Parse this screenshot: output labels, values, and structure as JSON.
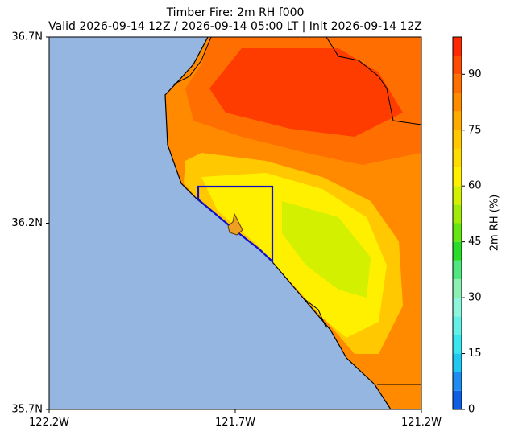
{
  "title": "Timber Fire: 2m RH f000",
  "subtitle": "Valid 2026-09-14 12Z / 2026-09-14 05:00 LT | Init 2026-09-14 12Z",
  "map": {
    "latlim": [
      35.7,
      36.7
    ],
    "lonlim": [
      -122.2,
      -121.2
    ],
    "lat_ticks": [
      {
        "value": 35.7,
        "label": "35.7N"
      },
      {
        "value": 36.2,
        "label": "36.2N"
      },
      {
        "value": 36.7,
        "label": "36.7N"
      }
    ],
    "lon_ticks": [
      {
        "value": -122.2,
        "label": "122.2W"
      },
      {
        "value": -121.7,
        "label": "121.7W"
      },
      {
        "value": -121.2,
        "label": "121.2W"
      }
    ]
  },
  "colorbar": {
    "label": "2m RH (%)",
    "lim": [
      0,
      100
    ],
    "ticks": [
      0,
      15,
      30,
      45,
      60,
      75,
      90
    ],
    "levels": [
      0,
      5,
      10,
      15,
      20,
      25,
      30,
      35,
      40,
      45,
      50,
      55,
      60,
      65,
      70,
      75,
      80,
      85,
      90,
      95,
      100
    ],
    "colors": [
      "#0f5fe6",
      "#1e8cf0",
      "#1ec8f0",
      "#3ce6f0",
      "#64f0e6",
      "#8cf5dc",
      "#8cf0b4",
      "#50e680",
      "#28dc28",
      "#64e614",
      "#a0eb0a",
      "#d2f000",
      "#fff000",
      "#ffdc00",
      "#ffc800",
      "#ffaa00",
      "#ff8c00",
      "#ff6e00",
      "#ff4b00",
      "#ff2800"
    ]
  }
}
